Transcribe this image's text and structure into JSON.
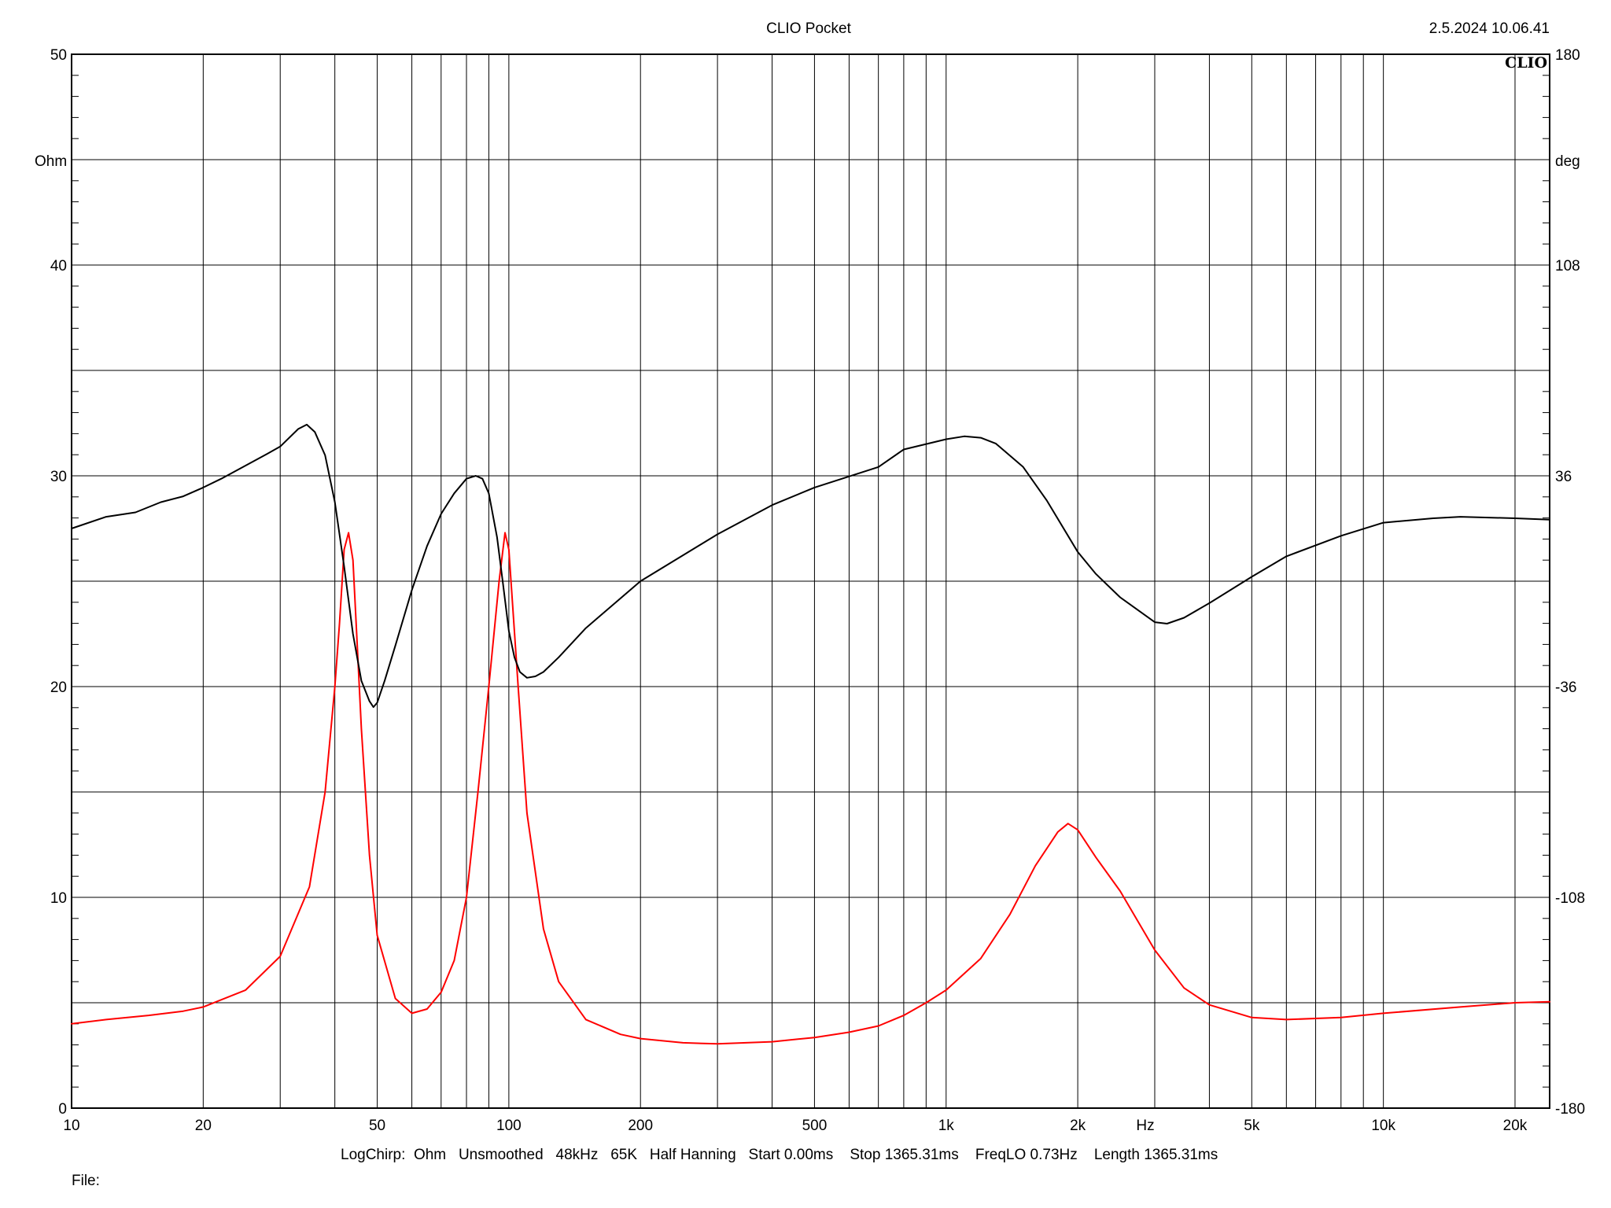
{
  "header": {
    "title": "CLIO Pocket",
    "timestamp": "2.5.2024 10.06.41",
    "logo": "CLIO"
  },
  "footer": {
    "settings": "LogChirp:  Ohm   Unsmoothed   48kHz   65K   Half Hanning   Start 0.00ms    Stop 1365.31ms    FreqLO 0.73Hz    Length 1365.31ms",
    "file_label": "File:"
  },
  "chart_data": {
    "type": "line",
    "title": "CLIO Pocket",
    "x_scale": "log",
    "xlim": [
      10,
      24000
    ],
    "x_unit_label": "Hz",
    "x_ticks": [
      {
        "value": 10,
        "label": "10"
      },
      {
        "value": 20,
        "label": "20"
      },
      {
        "value": 50,
        "label": "50"
      },
      {
        "value": 100,
        "label": "100"
      },
      {
        "value": 200,
        "label": "200"
      },
      {
        "value": 500,
        "label": "500"
      },
      {
        "value": 1000,
        "label": "1k"
      },
      {
        "value": 2000,
        "label": "2k"
      },
      {
        "value": 5000,
        "label": "5k"
      },
      {
        "value": 10000,
        "label": "10k"
      },
      {
        "value": 20000,
        "label": "20k"
      }
    ],
    "y_left": {
      "unit": "Ohm",
      "lim": [
        0,
        50
      ],
      "ticks": [
        0,
        10,
        20,
        30,
        40,
        50
      ]
    },
    "y_right": {
      "unit": "deg",
      "lim": [
        -180,
        180
      ],
      "ticks": [
        -180,
        -108,
        -36,
        36,
        108,
        180
      ]
    },
    "grid": true,
    "series": [
      {
        "id": "impedance",
        "axis": "left",
        "color": "#ff0000",
        "x": [
          10,
          12,
          15,
          18,
          20,
          25,
          30,
          35,
          38,
          40,
          41,
          42,
          43,
          44,
          45,
          46,
          48,
          50,
          55,
          60,
          65,
          70,
          75,
          80,
          85,
          90,
          95,
          98,
          100,
          105,
          110,
          120,
          130,
          150,
          180,
          200,
          250,
          300,
          400,
          500,
          600,
          700,
          800,
          900,
          1000,
          1200,
          1400,
          1600,
          1800,
          1900,
          2000,
          2200,
          2500,
          3000,
          3500,
          4000,
          5000,
          6000,
          8000,
          10000,
          15000,
          20000,
          24000
        ],
        "y": [
          4.0,
          4.2,
          4.4,
          4.6,
          4.8,
          5.6,
          7.2,
          10.5,
          15,
          20,
          23,
          26.5,
          27.3,
          26,
          22,
          18,
          12,
          8.2,
          5.2,
          4.5,
          4.7,
          5.5,
          7.0,
          10,
          15,
          20,
          25,
          27.3,
          26.5,
          20,
          14,
          8.5,
          6.0,
          4.2,
          3.5,
          3.3,
          3.1,
          3.05,
          3.15,
          3.35,
          3.6,
          3.9,
          4.4,
          5.0,
          5.6,
          7.1,
          9.2,
          11.5,
          13.1,
          13.5,
          13.2,
          11.9,
          10.3,
          7.5,
          5.7,
          4.9,
          4.3,
          4.2,
          4.3,
          4.5,
          4.8,
          5.0,
          5.05
        ]
      },
      {
        "id": "phase",
        "axis": "right",
        "color": "#000000",
        "x": [
          10,
          12,
          14,
          16,
          18,
          20,
          22,
          25,
          28,
          30,
          33,
          34.5,
          36,
          38,
          40,
          42,
          44,
          46,
          48,
          49,
          50,
          52,
          55,
          60,
          65,
          70,
          75,
          80,
          84,
          87,
          90,
          94,
          97,
          100,
          103,
          106,
          110,
          115,
          120,
          130,
          150,
          200,
          300,
          400,
          500,
          700,
          800,
          1000,
          1100,
          1200,
          1300,
          1500,
          1700,
          2000,
          2200,
          2500,
          3000,
          3200,
          3500,
          4000,
          5000,
          6000,
          8000,
          10000,
          13000,
          15000,
          20000,
          24000
        ],
        "y": [
          18,
          22,
          23.5,
          27,
          29,
          32,
          35,
          39.5,
          43.5,
          46,
          52,
          53.5,
          51,
          43,
          27,
          5,
          -18,
          -34,
          -41,
          -43,
          -41.5,
          -34,
          -22,
          -3,
          12,
          23,
          30,
          35,
          36,
          35,
          30,
          15,
          -1,
          -17,
          -26,
          -31,
          -33,
          -32.5,
          -31,
          -26,
          -16,
          0,
          16,
          26,
          32,
          39,
          45,
          48.5,
          49.5,
          49,
          47,
          39,
          27.5,
          10,
          2.5,
          -5.5,
          -14,
          -14.5,
          -12.5,
          -7.5,
          1.5,
          8.5,
          15.5,
          20,
          21.5,
          22,
          21.5,
          21
        ]
      }
    ]
  }
}
